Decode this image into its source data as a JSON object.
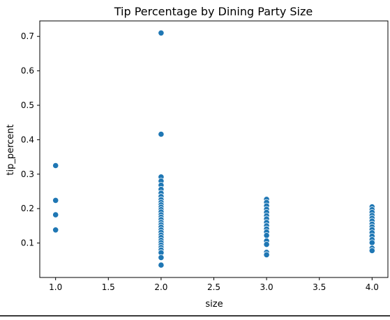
{
  "chart_data": {
    "type": "scatter",
    "title": "Tip Percentage by Dining Party Size",
    "xlabel": "size",
    "ylabel": "tip_percent",
    "xlim": [
      0.85,
      4.15
    ],
    "ylim": [
      0.0,
      0.745
    ],
    "xticks": [
      1.0,
      1.5,
      2.0,
      2.5,
      3.0,
      3.5,
      4.0
    ],
    "xtick_labels": [
      "1.0",
      "1.5",
      "2.0",
      "2.5",
      "3.0",
      "3.5",
      "4.0"
    ],
    "yticks": [
      0.1,
      0.2,
      0.3,
      0.4,
      0.5,
      0.6,
      0.7
    ],
    "ytick_labels": [
      "0.1",
      "0.2",
      "0.3",
      "0.4",
      "0.5",
      "0.6",
      "0.7"
    ],
    "grid": false,
    "marker_color": "#1f77b4",
    "points": [
      [
        1.0,
        0.325
      ],
      [
        1.0,
        0.224
      ],
      [
        1.0,
        0.182
      ],
      [
        1.0,
        0.138
      ],
      [
        2.0,
        0.71
      ],
      [
        2.0,
        0.416
      ],
      [
        2.0,
        0.292
      ],
      [
        2.0,
        0.28
      ],
      [
        2.0,
        0.268
      ],
      [
        2.0,
        0.256
      ],
      [
        2.0,
        0.245
      ],
      [
        2.0,
        0.235
      ],
      [
        2.0,
        0.226
      ],
      [
        2.0,
        0.218
      ],
      [
        2.0,
        0.211
      ],
      [
        2.0,
        0.204
      ],
      [
        2.0,
        0.197
      ],
      [
        2.0,
        0.19
      ],
      [
        2.0,
        0.182
      ],
      [
        2.0,
        0.175
      ],
      [
        2.0,
        0.168
      ],
      [
        2.0,
        0.16
      ],
      [
        2.0,
        0.153
      ],
      [
        2.0,
        0.146
      ],
      [
        2.0,
        0.138
      ],
      [
        2.0,
        0.131
      ],
      [
        2.0,
        0.123
      ],
      [
        2.0,
        0.116
      ],
      [
        2.0,
        0.108
      ],
      [
        2.0,
        0.101
      ],
      [
        2.0,
        0.094
      ],
      [
        2.0,
        0.087
      ],
      [
        2.0,
        0.08
      ],
      [
        2.0,
        0.072
      ],
      [
        2.0,
        0.058
      ],
      [
        2.0,
        0.036
      ],
      [
        3.0,
        0.227
      ],
      [
        3.0,
        0.218
      ],
      [
        3.0,
        0.208
      ],
      [
        3.0,
        0.198
      ],
      [
        3.0,
        0.189
      ],
      [
        3.0,
        0.179
      ],
      [
        3.0,
        0.17
      ],
      [
        3.0,
        0.16
      ],
      [
        3.0,
        0.15
      ],
      [
        3.0,
        0.141
      ],
      [
        3.0,
        0.132
      ],
      [
        3.0,
        0.122
      ],
      [
        3.0,
        0.106
      ],
      [
        3.0,
        0.096
      ],
      [
        3.0,
        0.073
      ],
      [
        3.0,
        0.066
      ],
      [
        4.0,
        0.205
      ],
      [
        4.0,
        0.197
      ],
      [
        4.0,
        0.189
      ],
      [
        4.0,
        0.18
      ],
      [
        4.0,
        0.172
      ],
      [
        4.0,
        0.164
      ],
      [
        4.0,
        0.155
      ],
      [
        4.0,
        0.147
      ],
      [
        4.0,
        0.139
      ],
      [
        4.0,
        0.13
      ],
      [
        4.0,
        0.12
      ],
      [
        4.0,
        0.11
      ],
      [
        4.0,
        0.101
      ],
      [
        4.0,
        0.085
      ],
      [
        4.0,
        0.078
      ]
    ]
  }
}
